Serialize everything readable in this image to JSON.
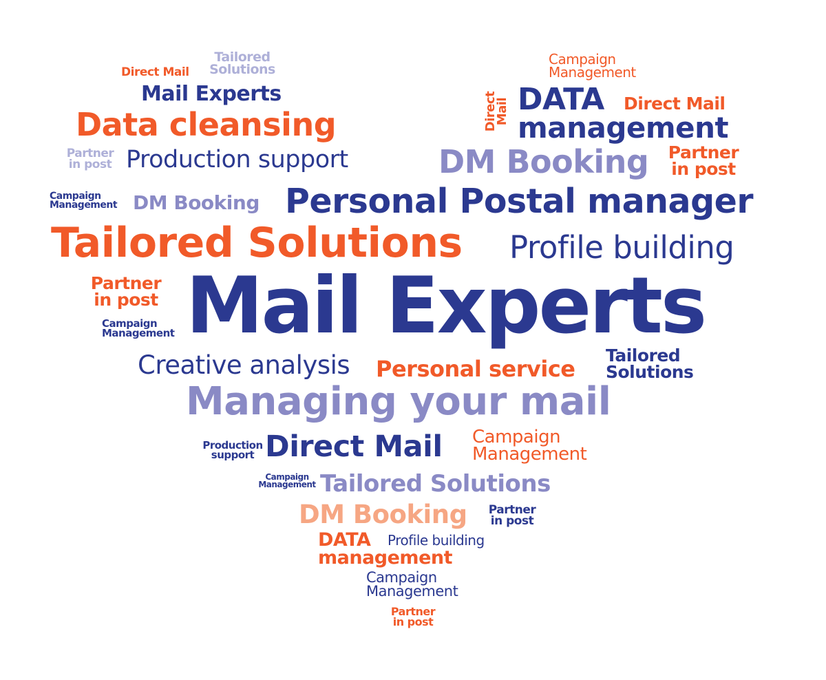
{
  "colors": {
    "navy": "#2b3990",
    "orange": "#f15a29",
    "lavender": "#8a8ac5",
    "light_lavender": "#aeb0d8",
    "peach": "#f6a683"
  },
  "words": {
    "w01": "Tailored Solutions",
    "w02": "Direct Mail",
    "w03": "Mail Experts",
    "w04": "Data cleansing",
    "w05": "Partner in post",
    "w06": "Production support",
    "w07": "Campaign Management",
    "w08": "Direct Mail",
    "w09": "DATA",
    "w10": "Direct Mail",
    "w11": "management",
    "w12": "DM Booking",
    "w13": "Partner in post",
    "w14": "Campaign Management",
    "w15": "DM Booking",
    "w16": "Personal Postal manager",
    "w17": "Tailored Solutions",
    "w18": "Profile building",
    "w19": "Partner in post",
    "w20": "Mail Experts",
    "w21": "Campaign Management",
    "w22": "Creative analysis",
    "w23": "Personal service",
    "w24": "Tailored Solutions",
    "w25": "Managing your mail",
    "w26": "Production support",
    "w27": "Direct Mail",
    "w28": "Campaign Management",
    "w29": "Campaign Management",
    "w30": "Tailored Solutions",
    "w31": "DM Booking",
    "w32": "Partner in post",
    "w33": "DATA management",
    "w34": "Profile building",
    "w35": "Campaign Management",
    "w36": "Partner in post"
  }
}
